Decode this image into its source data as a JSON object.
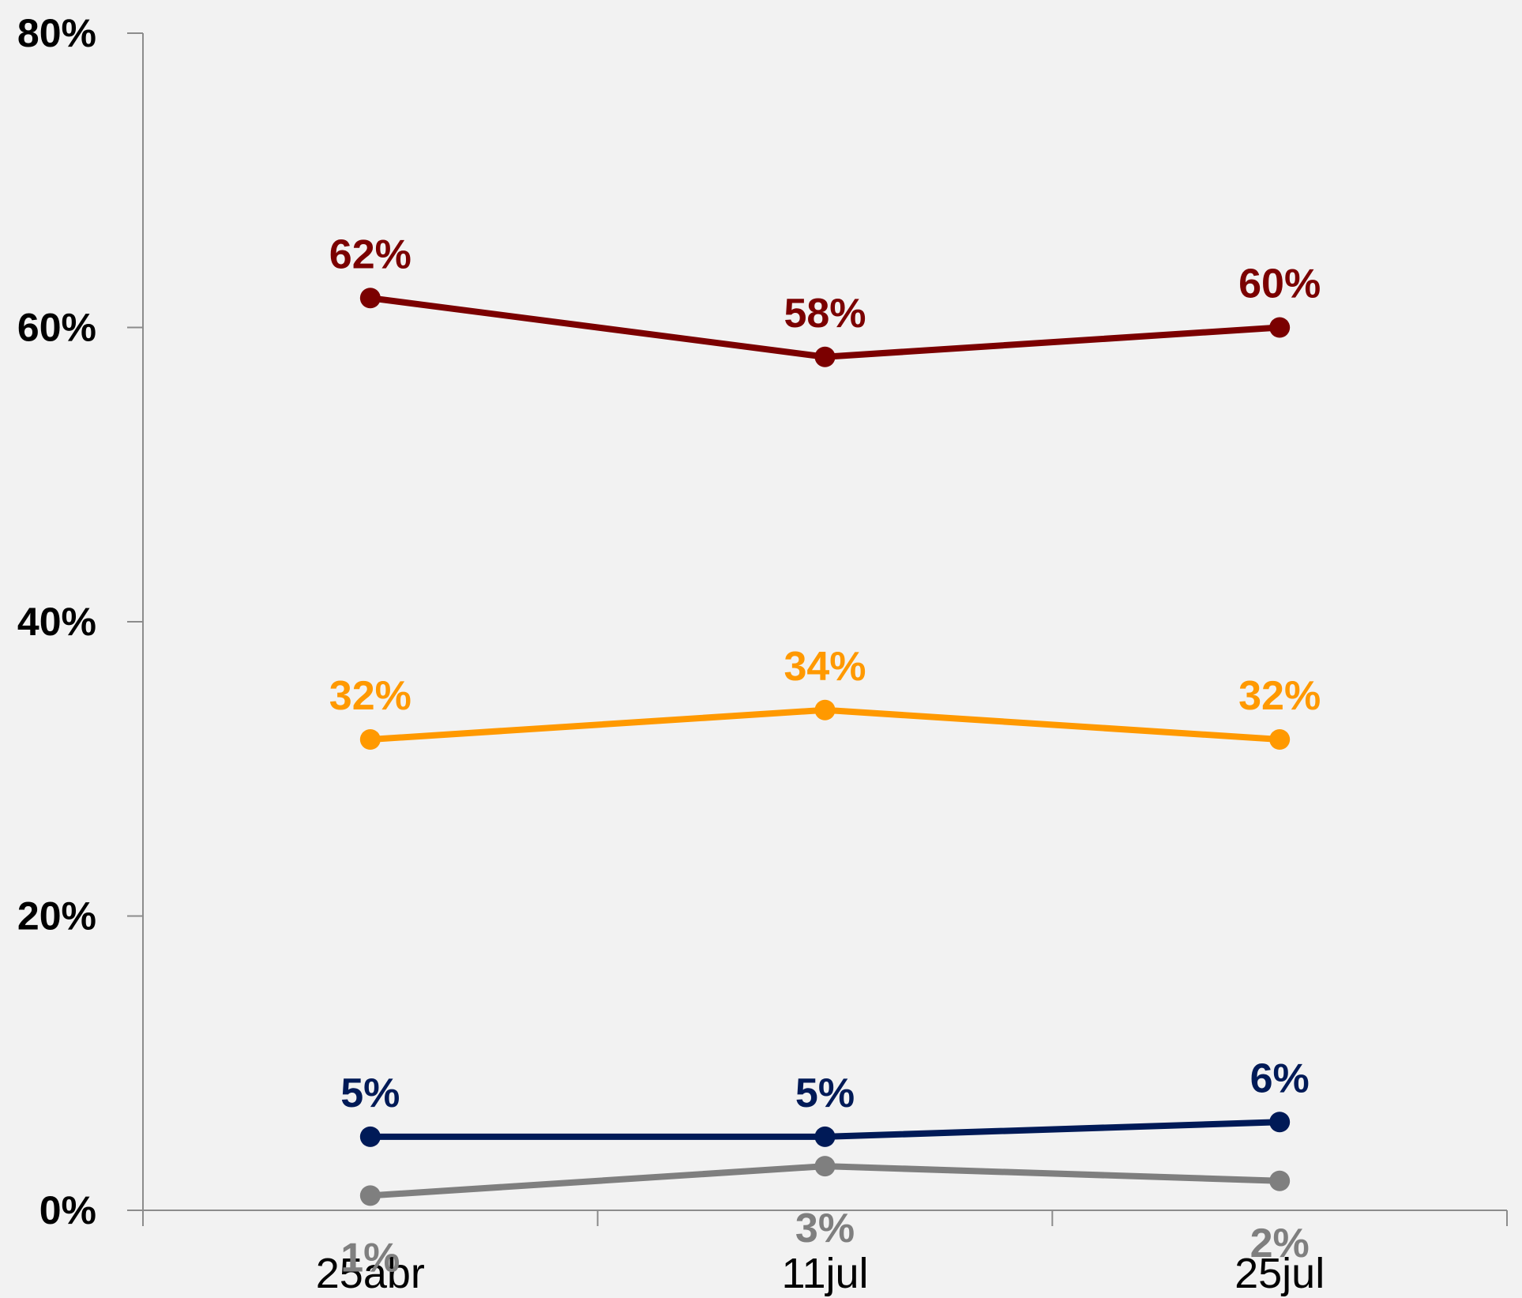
{
  "chart_data": {
    "type": "line",
    "categories": [
      "25abr",
      "11jul",
      "25jul"
    ],
    "y_ticks": [
      "0%",
      "20%",
      "40%",
      "60%",
      "80%"
    ],
    "ylim": [
      0,
      80
    ],
    "y_unit": "%",
    "grid": false,
    "legend": "none",
    "series": [
      {
        "color": "#7b0000",
        "values": [
          62,
          58,
          60
        ],
        "labels": [
          "62%",
          "58%",
          "60%"
        ],
        "label_position": "above"
      },
      {
        "color": "#ff9900",
        "values": [
          32,
          34,
          32
        ],
        "labels": [
          "32%",
          "34%",
          "32%"
        ],
        "label_position": "above"
      },
      {
        "color": "#001a57",
        "values": [
          5,
          5,
          6
        ],
        "labels": [
          "5%",
          "5%",
          "6%"
        ],
        "label_position": "above"
      },
      {
        "color": "#7f7f7f",
        "values": [
          1,
          3,
          2
        ],
        "labels": [
          "1%",
          "3%",
          "2%"
        ],
        "label_position": "below"
      }
    ]
  }
}
